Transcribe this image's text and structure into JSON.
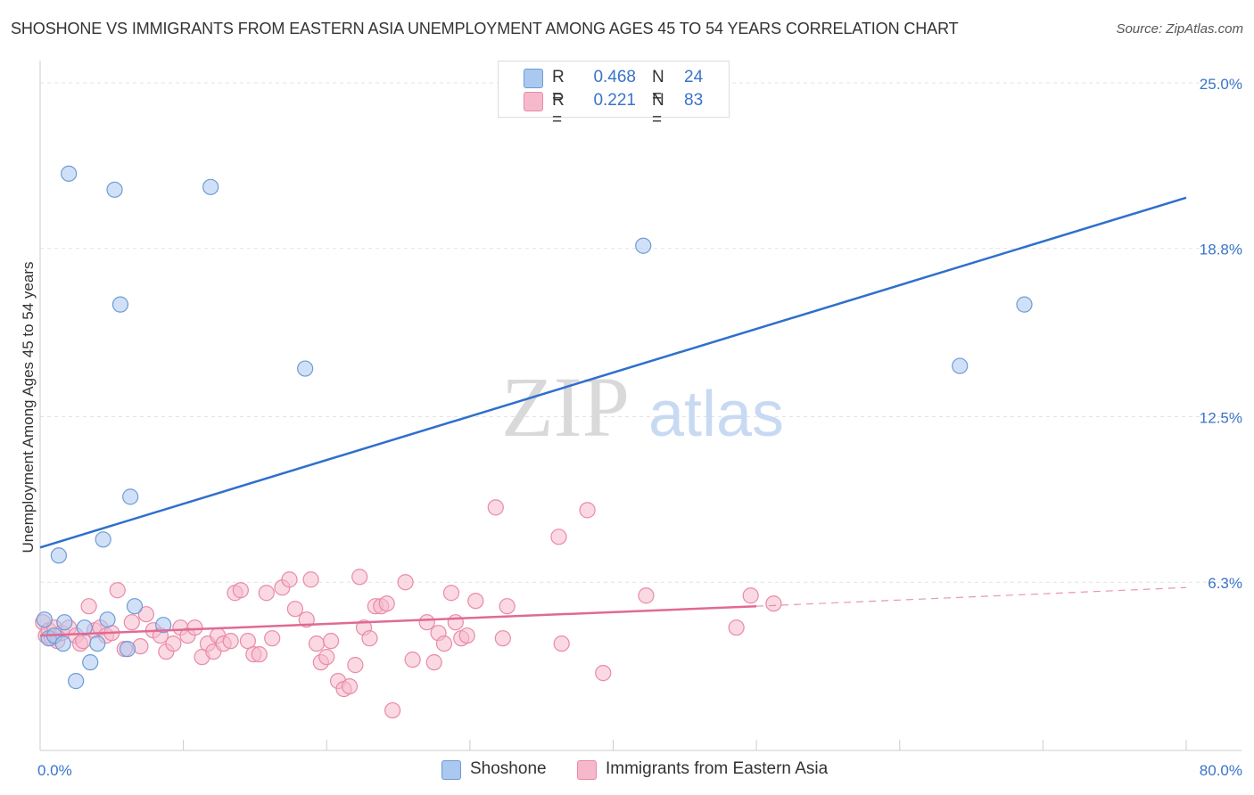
{
  "title": "SHOSHONE VS IMMIGRANTS FROM EASTERN ASIA UNEMPLOYMENT AMONG AGES 45 TO 54 YEARS CORRELATION CHART",
  "source": "Source: ZipAtlas.com",
  "watermark": {
    "zip": "ZIP",
    "atlas": "atlas"
  },
  "legend": {
    "rows": [
      {
        "r_label": "R =",
        "r_value": "0.468",
        "n_label": "N =",
        "n_value": "24"
      },
      {
        "r_label": "R =",
        "r_value": "0.221",
        "n_label": "N =",
        "n_value": "83"
      }
    ]
  },
  "bottom_legend": {
    "shoshone": "Shoshone",
    "immigrants": "Immigrants from Eastern Asia"
  },
  "colors": {
    "blue_fill": "#aac8f0",
    "blue_stroke": "#6f9bd6",
    "blue_line": "#2f6fcc",
    "pink_fill": "#f6b9cc",
    "pink_stroke": "#e98aa8",
    "pink_line": "#e06a94",
    "axis_text": "#3a74c8",
    "grid": "#e3e3e3"
  },
  "chart_data": {
    "type": "scatter",
    "title": "SHOSHONE VS IMMIGRANTS FROM EASTERN ASIA UNEMPLOYMENT AMONG AGES 45 TO 54 YEARS CORRELATION CHART",
    "xlabel": "",
    "ylabel": "Unemployment Among Ages 45 to 54 years",
    "xlim": [
      0,
      80
    ],
    "ylim": [
      0,
      25.5
    ],
    "x_tick_labels": [
      {
        "value": 0,
        "label": "0.0%"
      },
      {
        "value": 80,
        "label": "80.0%"
      }
    ],
    "y_tick_labels": [
      {
        "value": 6.3,
        "label": "6.3%"
      },
      {
        "value": 12.5,
        "label": "12.5%"
      },
      {
        "value": 18.8,
        "label": "18.8%"
      },
      {
        "value": 25.0,
        "label": "25.0%"
      }
    ],
    "series": [
      {
        "name": "Shoshone",
        "color": "blue",
        "points": [
          [
            0.3,
            4.9
          ],
          [
            0.6,
            4.2
          ],
          [
            1.0,
            4.3
          ],
          [
            1.3,
            7.3
          ],
          [
            1.6,
            4.0
          ],
          [
            1.7,
            4.8
          ],
          [
            2.0,
            21.6
          ],
          [
            2.5,
            2.6
          ],
          [
            3.1,
            4.6
          ],
          [
            3.5,
            3.3
          ],
          [
            4.0,
            4.0
          ],
          [
            4.4,
            7.9
          ],
          [
            4.7,
            4.9
          ],
          [
            5.2,
            21.0
          ],
          [
            5.6,
            16.7
          ],
          [
            6.1,
            3.8
          ],
          [
            6.3,
            9.5
          ],
          [
            6.6,
            5.4
          ],
          [
            8.6,
            4.7
          ],
          [
            11.9,
            21.1
          ],
          [
            18.5,
            14.3
          ],
          [
            42.1,
            18.9
          ],
          [
            64.2,
            14.4
          ],
          [
            68.7,
            16.7
          ]
        ],
        "trend": {
          "x0": 0,
          "y0": 7.6,
          "x1": 80,
          "y1": 20.7
        }
      },
      {
        "name": "Immigrants from Eastern Asia",
        "color": "pink",
        "points": [
          [
            0.2,
            4.8
          ],
          [
            0.4,
            4.3
          ],
          [
            0.6,
            4.5
          ],
          [
            0.8,
            4.2
          ],
          [
            1.0,
            4.6
          ],
          [
            1.2,
            4.1
          ],
          [
            1.5,
            4.4
          ],
          [
            2.0,
            4.6
          ],
          [
            2.5,
            4.3
          ],
          [
            2.8,
            4.0
          ],
          [
            3.0,
            4.1
          ],
          [
            3.4,
            5.4
          ],
          [
            3.8,
            4.5
          ],
          [
            4.2,
            4.6
          ],
          [
            4.6,
            4.3
          ],
          [
            5.0,
            4.4
          ],
          [
            5.4,
            6.0
          ],
          [
            5.9,
            3.8
          ],
          [
            6.4,
            4.8
          ],
          [
            7.0,
            3.9
          ],
          [
            7.4,
            5.1
          ],
          [
            7.9,
            4.5
          ],
          [
            8.4,
            4.3
          ],
          [
            8.8,
            3.7
          ],
          [
            9.3,
            4.0
          ],
          [
            9.8,
            4.6
          ],
          [
            10.3,
            4.3
          ],
          [
            10.8,
            4.6
          ],
          [
            11.3,
            3.5
          ],
          [
            11.7,
            4.0
          ],
          [
            12.1,
            3.7
          ],
          [
            12.4,
            4.3
          ],
          [
            12.8,
            4.0
          ],
          [
            13.3,
            4.1
          ],
          [
            13.6,
            5.9
          ],
          [
            14.0,
            6.0
          ],
          [
            14.5,
            4.1
          ],
          [
            14.9,
            3.6
          ],
          [
            15.3,
            3.6
          ],
          [
            15.8,
            5.9
          ],
          [
            16.2,
            4.2
          ],
          [
            16.9,
            6.1
          ],
          [
            17.4,
            6.4
          ],
          [
            17.8,
            5.3
          ],
          [
            18.6,
            4.9
          ],
          [
            18.9,
            6.4
          ],
          [
            19.3,
            4.0
          ],
          [
            19.6,
            3.3
          ],
          [
            20.0,
            3.5
          ],
          [
            20.3,
            4.1
          ],
          [
            20.8,
            2.6
          ],
          [
            21.2,
            2.3
          ],
          [
            21.6,
            2.4
          ],
          [
            22.0,
            3.2
          ],
          [
            22.3,
            6.5
          ],
          [
            22.6,
            4.6
          ],
          [
            23.0,
            4.2
          ],
          [
            23.4,
            5.4
          ],
          [
            23.8,
            5.4
          ],
          [
            24.2,
            5.5
          ],
          [
            24.6,
            1.5
          ],
          [
            25.5,
            6.3
          ],
          [
            26.0,
            3.4
          ],
          [
            27.0,
            4.8
          ],
          [
            27.5,
            3.3
          ],
          [
            27.8,
            4.4
          ],
          [
            28.2,
            4.0
          ],
          [
            28.7,
            5.9
          ],
          [
            29.0,
            4.8
          ],
          [
            29.4,
            4.2
          ],
          [
            29.8,
            4.3
          ],
          [
            30.4,
            5.6
          ],
          [
            31.8,
            9.1
          ],
          [
            32.3,
            4.2
          ],
          [
            32.6,
            5.4
          ],
          [
            36.2,
            8.0
          ],
          [
            36.4,
            4.0
          ],
          [
            38.2,
            9.0
          ],
          [
            39.3,
            2.9
          ],
          [
            42.3,
            5.8
          ],
          [
            48.6,
            4.6
          ],
          [
            49.6,
            5.8
          ],
          [
            51.2,
            5.5
          ]
        ],
        "trend": {
          "x0": 0,
          "y0": 4.3,
          "x1": 50,
          "y1": 5.4
        },
        "trend_dashed": {
          "x0": 50,
          "y0": 5.4,
          "x1": 80,
          "y1": 6.1
        }
      }
    ]
  }
}
